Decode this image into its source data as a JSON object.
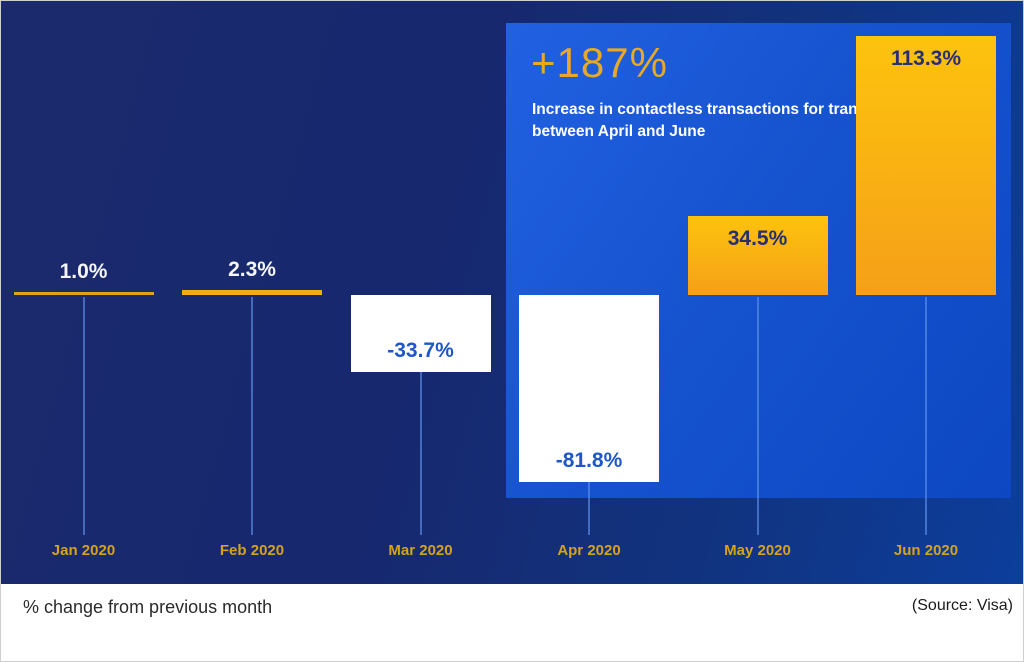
{
  "chart_data": {
    "type": "bar",
    "title": "",
    "categories": [
      "Jan 2020",
      "Feb 2020",
      "Mar 2020",
      "Apr 2020",
      "May 2020",
      "Jun 2020"
    ],
    "values": [
      1.0,
      2.3,
      -33.7,
      -81.8,
      34.5,
      113.3
    ],
    "value_labels": [
      "1.0%",
      "2.3%",
      "-33.7%",
      "-81.8%",
      "34.5%",
      "113.3%"
    ],
    "xlabel": "",
    "ylabel": "% change from previous month",
    "ylim": [
      -90,
      120
    ],
    "grid": "off",
    "legend": "none",
    "highlight_range": "Apr 2020 to Jun 2020",
    "annotation": {
      "headline": "+187%",
      "description": "Increase in contactless transactions for transit fares between April and June"
    }
  },
  "annotation": {
    "headline": "+187%",
    "description": "Increase in contactless transactions for transit fares between April and June"
  },
  "footer": {
    "caption": "% change from previous month",
    "source": "(Source: Visa)"
  },
  "colors": {
    "background_navy": "#17286c",
    "background_navy_right": "#0c3e9d",
    "highlight_panel_blue": "#1653cf",
    "accent_gold": "#e9a826",
    "bar_gold_top": "#fdc30d",
    "bar_gold_bottom": "#f5a018",
    "bar_white": "#ffffff",
    "negative_value_blue": "#1e57c9",
    "positive_value_navy": "#27306e",
    "month_label_gold": "#d5a21c",
    "connector_blue": "#4a7fe0"
  }
}
